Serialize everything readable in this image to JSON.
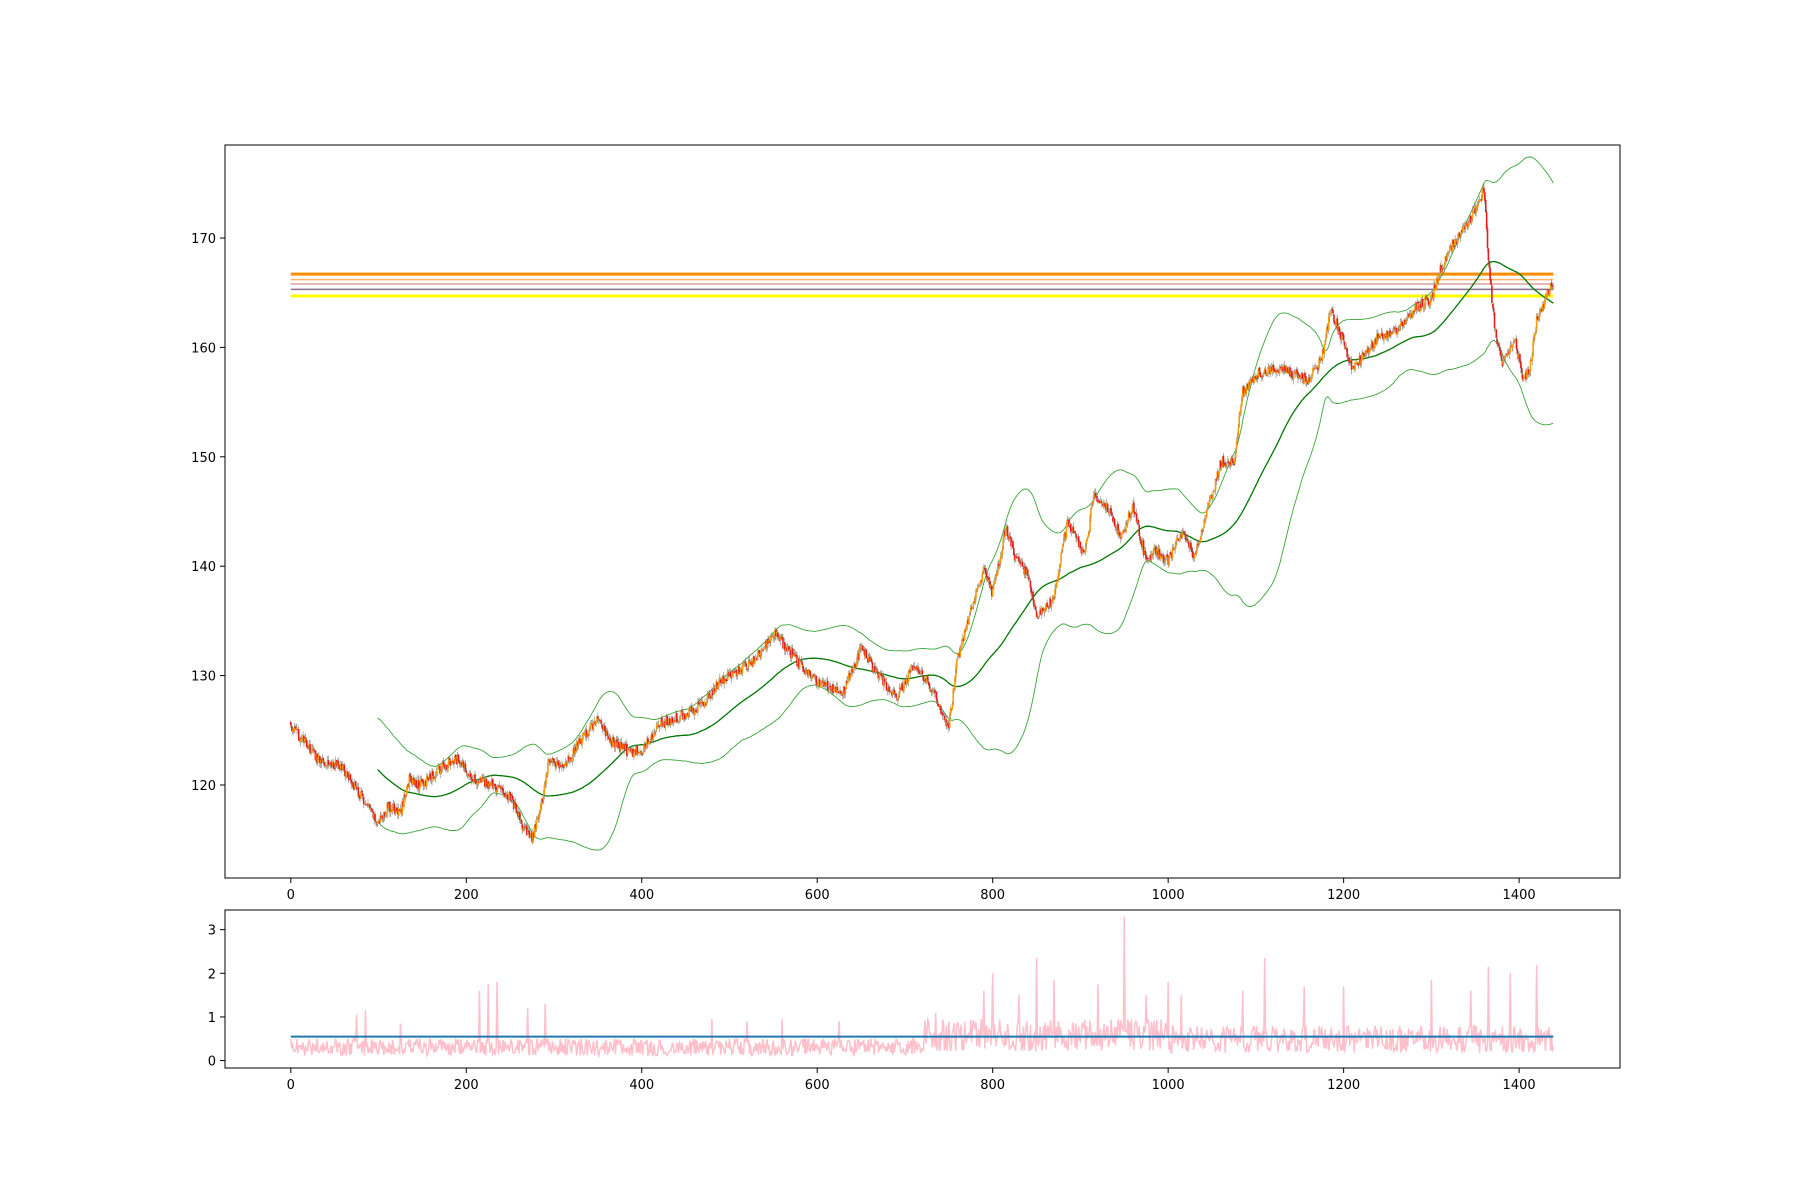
{
  "colors": {
    "bull_candle": "#ff9900",
    "bear_candle": "#e41a1c",
    "wick": "#8b7d6b",
    "sma": "#007700",
    "bollinger": "#3aa53a",
    "atr": "#ffc0cb",
    "atr_mean": "#1f77b4",
    "level_colors": [
      "#ff8c00",
      "#ffb366",
      "#d9a0a0",
      "#8a6f8a",
      "#ffff00"
    ]
  },
  "chart_data": [
    {
      "type": "candlestick",
      "title": "",
      "xlabel": "",
      "ylabel": "",
      "xlim": [
        -75,
        1515
      ],
      "ylim": [
        111.5,
        178.5
      ],
      "x_ticks": [
        0,
        200,
        400,
        600,
        800,
        1000,
        1200,
        1400
      ],
      "y_ticks": [
        120,
        130,
        140,
        150,
        160,
        170
      ],
      "grid": false,
      "n_candles": 1440,
      "close_anchors": [
        [
          0,
          125.3
        ],
        [
          10,
          124.5
        ],
        [
          30,
          122.5
        ],
        [
          60,
          121.5
        ],
        [
          80,
          119.0
        ],
        [
          95,
          117.0
        ],
        [
          100,
          116.5
        ],
        [
          110,
          118.0
        ],
        [
          125,
          117.5
        ],
        [
          135,
          120.5
        ],
        [
          150,
          120.0
        ],
        [
          170,
          121.5
        ],
        [
          190,
          122.3
        ],
        [
          200,
          121.5
        ],
        [
          210,
          120.5
        ],
        [
          230,
          120.0
        ],
        [
          250,
          119.0
        ],
        [
          265,
          116.0
        ],
        [
          275,
          115.0
        ],
        [
          285,
          118.0
        ],
        [
          295,
          122.5
        ],
        [
          310,
          121.5
        ],
        [
          330,
          124.0
        ],
        [
          350,
          126.0
        ],
        [
          365,
          124.0
        ],
        [
          385,
          123.0
        ],
        [
          400,
          123.0
        ],
        [
          420,
          125.5
        ],
        [
          450,
          126.5
        ],
        [
          470,
          127.5
        ],
        [
          490,
          129.5
        ],
        [
          510,
          130.5
        ],
        [
          530,
          131.5
        ],
        [
          550,
          134.0
        ],
        [
          565,
          132.5
        ],
        [
          580,
          131.0
        ],
        [
          600,
          129.5
        ],
        [
          630,
          128.5
        ],
        [
          650,
          132.5
        ],
        [
          665,
          130.5
        ],
        [
          690,
          128.0
        ],
        [
          710,
          131.0
        ],
        [
          730,
          129.0
        ],
        [
          745,
          126.0
        ],
        [
          750,
          125.5
        ],
        [
          760,
          131.5
        ],
        [
          775,
          136.0
        ],
        [
          790,
          139.5
        ],
        [
          800,
          137.5
        ],
        [
          815,
          143.5
        ],
        [
          825,
          141.0
        ],
        [
          840,
          139.0
        ],
        [
          850,
          135.5
        ],
        [
          870,
          137.0
        ],
        [
          885,
          144.0
        ],
        [
          905,
          141.0
        ],
        [
          915,
          146.5
        ],
        [
          935,
          145.0
        ],
        [
          945,
          142.5
        ],
        [
          960,
          145.5
        ],
        [
          975,
          140.5
        ],
        [
          985,
          141.5
        ],
        [
          1000,
          140.5
        ],
        [
          1015,
          143.0
        ],
        [
          1030,
          141.0
        ],
        [
          1045,
          145.0
        ],
        [
          1060,
          149.5
        ],
        [
          1075,
          149.5
        ],
        [
          1085,
          156.0
        ],
        [
          1100,
          157.5
        ],
        [
          1115,
          158.0
        ],
        [
          1130,
          158.0
        ],
        [
          1145,
          157.5
        ],
        [
          1160,
          157.0
        ],
        [
          1175,
          159.0
        ],
        [
          1185,
          163.5
        ],
        [
          1200,
          160.5
        ],
        [
          1210,
          158.0
        ],
        [
          1225,
          159.5
        ],
        [
          1240,
          161.0
        ],
        [
          1260,
          161.5
        ],
        [
          1280,
          163.5
        ],
        [
          1300,
          164.5
        ],
        [
          1310,
          167.0
        ],
        [
          1325,
          169.5
        ],
        [
          1340,
          171.0
        ],
        [
          1350,
          172.5
        ],
        [
          1360,
          174.5
        ],
        [
          1366,
          167.0
        ],
        [
          1372,
          162.0
        ],
        [
          1380,
          158.5
        ],
        [
          1395,
          161.0
        ],
        [
          1405,
          157.0
        ],
        [
          1412,
          158.0
        ],
        [
          1420,
          162.5
        ],
        [
          1430,
          164.5
        ],
        [
          1439,
          165.8
        ]
      ],
      "sma_period": 100,
      "bollinger_bands": 2,
      "horizontal_levels": [
        166.7,
        166.2,
        165.8,
        165.3,
        164.7
      ],
      "levels_x_range": [
        0,
        1439
      ]
    },
    {
      "type": "line",
      "title": "",
      "xlabel": "",
      "ylabel": "",
      "xlim": [
        -75,
        1515
      ],
      "ylim": [
        -0.17,
        3.45
      ],
      "x_ticks": [
        0,
        200,
        400,
        600,
        800,
        1000,
        1200,
        1400
      ],
      "y_ticks": [
        0,
        1,
        2,
        3
      ],
      "grid": false,
      "atr_mean": 0.55,
      "spikes": [
        [
          75,
          1.05
        ],
        [
          85,
          1.15
        ],
        [
          125,
          0.85
        ],
        [
          215,
          1.6
        ],
        [
          225,
          1.75
        ],
        [
          235,
          1.8
        ],
        [
          270,
          1.2
        ],
        [
          290,
          1.3
        ],
        [
          480,
          0.95
        ],
        [
          520,
          0.9
        ],
        [
          560,
          0.95
        ],
        [
          625,
          0.9
        ],
        [
          735,
          1.1
        ],
        [
          790,
          1.6
        ],
        [
          800,
          2.0
        ],
        [
          830,
          1.5
        ],
        [
          850,
          2.35
        ],
        [
          870,
          1.85
        ],
        [
          920,
          1.75
        ],
        [
          950,
          3.3
        ],
        [
          975,
          1.5
        ],
        [
          1000,
          1.8
        ],
        [
          1015,
          1.5
        ],
        [
          1085,
          1.6
        ],
        [
          1110,
          2.35
        ],
        [
          1155,
          1.7
        ],
        [
          1200,
          1.7
        ],
        [
          1300,
          1.85
        ],
        [
          1345,
          1.6
        ],
        [
          1365,
          2.15
        ],
        [
          1390,
          2.0
        ],
        [
          1420,
          2.2
        ]
      ]
    }
  ]
}
